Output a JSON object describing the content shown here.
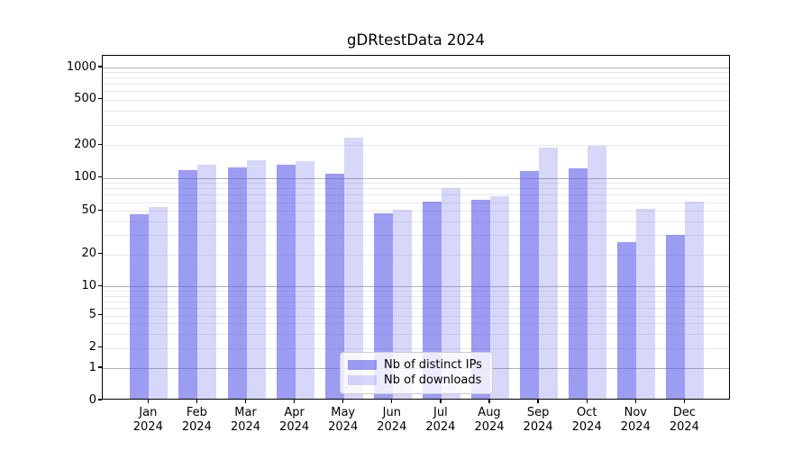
{
  "title": "gDRtestData 2024",
  "legend": {
    "items": [
      {
        "label": "Nb of distinct IPs",
        "series": "ips"
      },
      {
        "label": "Nb of downloads",
        "series": "downloads"
      }
    ]
  },
  "colors": {
    "ips_bar": "rgba(95,95,235,0.62)",
    "downloads_bar": "rgba(95,95,235,0.25)",
    "major_grid": "#b1b1b1",
    "minor_grid": "#e8e8e8",
    "axis": "#000000"
  },
  "chart_data": {
    "type": "bar",
    "title": "gDRtestData 2024",
    "categories": [
      "Jan 2024",
      "Feb 2024",
      "Mar 2024",
      "Apr 2024",
      "May 2024",
      "Jun 2024",
      "Jul 2024",
      "Aug 2024",
      "Sep 2024",
      "Oct 2024",
      "Nov 2024",
      "Dec 2024"
    ],
    "series": [
      {
        "name": "Nb of distinct IPs",
        "values": [
          45,
          114,
          119,
          126,
          105,
          46,
          58,
          61,
          111,
          118,
          25,
          29
        ]
      },
      {
        "name": "Nb of downloads",
        "values": [
          52,
          127,
          140,
          136,
          225,
          49,
          77,
          66,
          184,
          190,
          50,
          58
        ]
      }
    ],
    "yscale": "symlog",
    "yticks": [
      0,
      1,
      2,
      5,
      10,
      20,
      50,
      100,
      200,
      500,
      1000
    ],
    "ylim": [
      0,
      1265
    ],
    "xlabel": "",
    "ylabel": "",
    "grid": true,
    "legend_position": "lower center"
  }
}
